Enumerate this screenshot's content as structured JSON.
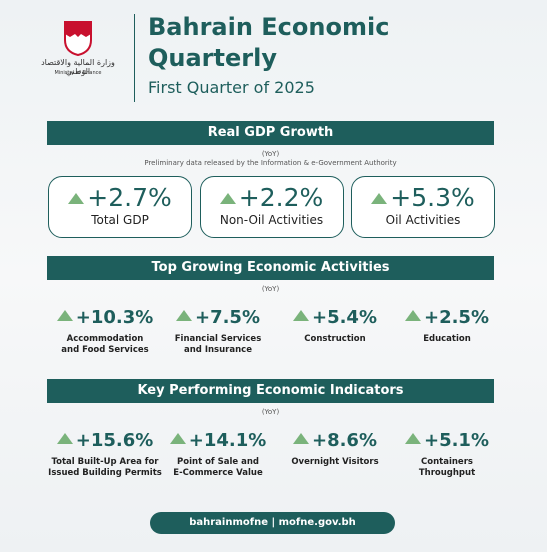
{
  "header": {
    "ministry_ar": "وزارة المالية والاقتصاد الوطني",
    "ministry_en": "Ministry of Finance",
    "title": "Bahrain Economic Quarterly",
    "subtitle": "First Quarter of 2025"
  },
  "sections": [
    {
      "title": "Real GDP Growth",
      "period": "(YoY)",
      "note": "Preliminary data released by the Information & e-Government Authority",
      "items": [
        {
          "value": "+2.7%",
          "label": "Total GDP"
        },
        {
          "value": "+2.2%",
          "label": "Non-Oil Activities"
        },
        {
          "value": "+5.3%",
          "label": "Oil Activities"
        }
      ]
    },
    {
      "title": "Top Growing Economic Activities",
      "period": "(YoY)",
      "items": [
        {
          "value": "+10.3%",
          "label": "Accommodation and Food Services"
        },
        {
          "value": "+7.5%",
          "label": "Financial Services and Insurance"
        },
        {
          "value": "+5.4%",
          "label": "Construction"
        },
        {
          "value": "+2.5%",
          "label": "Education"
        }
      ]
    },
    {
      "title": "Key Performing Economic Indicators",
      "period": "(YoY)",
      "items": [
        {
          "value": "+15.6%",
          "label": "Total Built-Up Area for Issued Building Permits"
        },
        {
          "value": "+14.1%",
          "label": "Point of Sale and E-Commerce Value"
        },
        {
          "value": "+8.6%",
          "label": "Overnight Visitors"
        },
        {
          "value": "+5.1%",
          "label": "Containers Throughput"
        }
      ]
    }
  ],
  "footer": {
    "handle": "bahrainmofne",
    "website": "mofne.gov.bh"
  }
}
